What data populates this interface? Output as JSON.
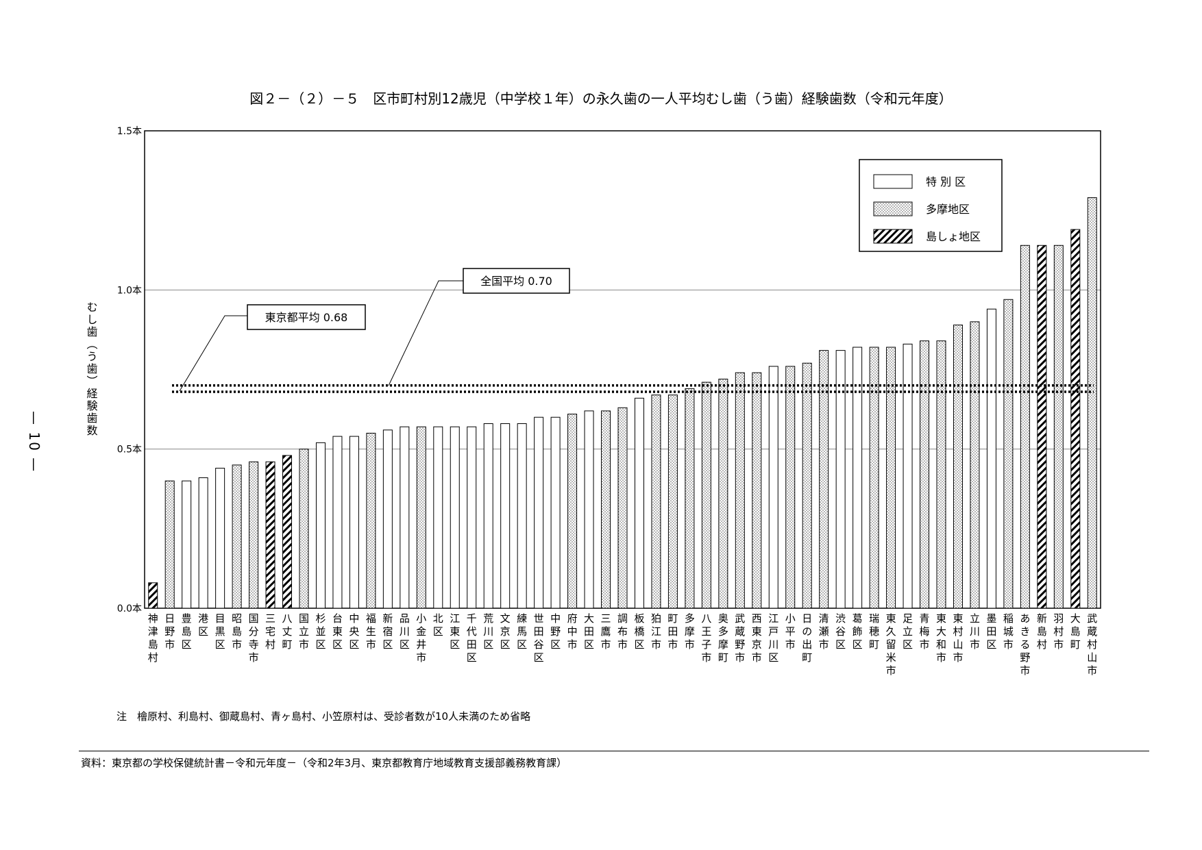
{
  "page_number": "— 10 —",
  "footnote": "注　檜原村、利島村、御蔵島村、青ヶ島村、小笠原村は、受診者数が10人未満のため省略",
  "source": "資料：東京都の学校保健統計書－令和元年度－（令和2年3月、東京都教育庁地域教育支援部義務教育課）",
  "colors": {
    "axis": "#000000",
    "gridline": "#888888",
    "special_ward": "#ffffff",
    "tama": "#e6e6e6",
    "island": "#ffffff"
  },
  "chart_data": {
    "type": "bar",
    "title": "図２－（２）－５　区市町村別12歳児（中学校１年）の永久歯の一人平均むし歯（う歯）経験歯数（令和元年度）",
    "ylabel": "むし歯（う歯）経験歯数",
    "ylim": [
      0,
      1.5
    ],
    "yticks": [
      "0.0本",
      "0.5本",
      "1.0本",
      "1.5本"
    ],
    "grid": true,
    "legend_position": "top-right",
    "legend": [
      {
        "key": "special",
        "label": "特 別 区",
        "pattern": "none"
      },
      {
        "key": "tama",
        "label": "多摩地区",
        "pattern": "dots"
      },
      {
        "key": "island",
        "label": "島しょ地区",
        "pattern": "hatch"
      }
    ],
    "reference_lines": [
      {
        "label": "全国平均 0.70",
        "value": 0.7
      },
      {
        "label": "東京都平均 0.68",
        "value": 0.68
      }
    ],
    "categories": [
      "神津島村",
      "日野市",
      "豊島区",
      "港区",
      "目黒区",
      "昭島市",
      "国分寺市",
      "三宅村",
      "八丈町",
      "国立市",
      "杉並区",
      "台東区",
      "中央区",
      "福生市",
      "新宿区",
      "品川区",
      "小金井市",
      "北区",
      "江東区",
      "千代田区",
      "荒川区",
      "文京区",
      "練馬区",
      "世田谷区",
      "中野区",
      "府中市",
      "大田区",
      "三鷹市",
      "調布市",
      "板橋区",
      "狛江市",
      "町田市",
      "多摩市",
      "八王子市",
      "奥多摩町",
      "武蔵野市",
      "西東京市",
      "江戸川区",
      "小平市",
      "日の出町",
      "清瀬市",
      "渋谷区",
      "葛飾区",
      "瑞穂町",
      "東久留米市",
      "足立区",
      "青梅市",
      "東大和市",
      "東村山市",
      "立川市",
      "墨田区",
      "稲城市",
      "あきる野市",
      "新島村",
      "羽村市",
      "大島町",
      "武蔵村山市"
    ],
    "groups": [
      "island",
      "tama",
      "special",
      "special",
      "special",
      "tama",
      "tama",
      "island",
      "island",
      "tama",
      "special",
      "special",
      "special",
      "tama",
      "special",
      "special",
      "tama",
      "special",
      "special",
      "special",
      "special",
      "special",
      "special",
      "special",
      "special",
      "tama",
      "special",
      "tama",
      "tama",
      "special",
      "tama",
      "tama",
      "tama",
      "tama",
      "tama",
      "tama",
      "tama",
      "special",
      "tama",
      "tama",
      "tama",
      "special",
      "special",
      "tama",
      "tama",
      "special",
      "tama",
      "tama",
      "tama",
      "tama",
      "special",
      "tama",
      "tama",
      "island",
      "tama",
      "island",
      "tama"
    ],
    "values": [
      0.08,
      0.4,
      0.4,
      0.41,
      0.44,
      0.45,
      0.46,
      0.46,
      0.48,
      0.5,
      0.52,
      0.54,
      0.54,
      0.55,
      0.56,
      0.57,
      0.57,
      0.57,
      0.57,
      0.57,
      0.58,
      0.58,
      0.58,
      0.6,
      0.6,
      0.61,
      0.62,
      0.62,
      0.63,
      0.66,
      0.67,
      0.67,
      0.69,
      0.71,
      0.72,
      0.74,
      0.74,
      0.76,
      0.76,
      0.77,
      0.81,
      0.81,
      0.82,
      0.82,
      0.82,
      0.83,
      0.84,
      0.84,
      0.89,
      0.9,
      0.94,
      0.97,
      1.14,
      1.14,
      1.14,
      1.19,
      1.29
    ]
  }
}
